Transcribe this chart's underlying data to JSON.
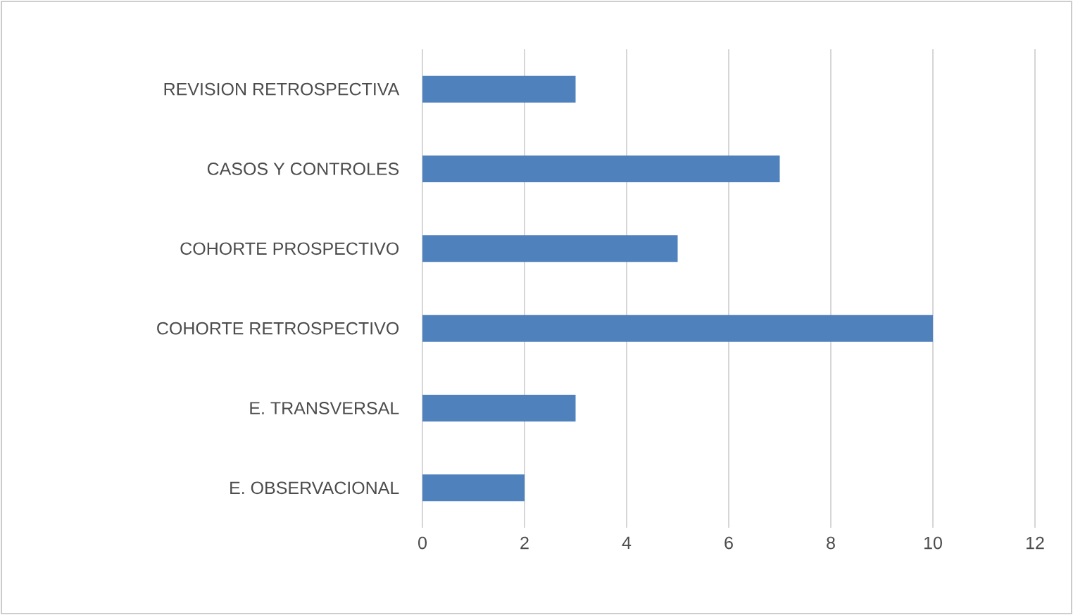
{
  "chart_data": {
    "type": "bar",
    "orientation": "horizontal",
    "categories": [
      "REVISION RETROSPECTIVA",
      "CASOS Y CONTROLES",
      "COHORTE PROSPECTIVO",
      "COHORTE RETROSPECTIVO",
      "E. TRANSVERSAL",
      "E. OBSERVACIONAL"
    ],
    "values": [
      3,
      7,
      5,
      10,
      3,
      2
    ],
    "color": "#4f81bd",
    "xlim": [
      0,
      12
    ],
    "xticks": [
      0,
      2,
      4,
      6,
      8,
      10,
      12
    ],
    "grid": "x"
  }
}
